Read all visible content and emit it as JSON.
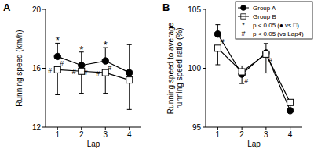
{
  "chart_data": [
    {
      "type": "line",
      "title": "A",
      "x_label": "Lap",
      "y_label": "Running speed (km/h)",
      "categories": [
        "1",
        "2",
        "3",
        "4"
      ],
      "ylim": [
        12,
        20
      ],
      "yticks": [
        12,
        16,
        20
      ],
      "series": [
        {
          "name": "Group A",
          "color": "#000000",
          "marker": "circle",
          "values": [
            16.8,
            16.2,
            16.5,
            15.7
          ],
          "error_high": [
            0.9,
            0.9,
            0.9,
            1.9
          ]
        },
        {
          "name": "Group B",
          "color": "#000000",
          "marker": "square",
          "values": [
            15.9,
            15.8,
            15.7,
            15.2
          ],
          "error_low": [
            1.7,
            1.5,
            1.4,
            2.0
          ]
        }
      ],
      "annotations": [
        {
          "text": "*",
          "category": 0
        },
        {
          "text": "*",
          "category": 1
        },
        {
          "text": "*",
          "category": 2
        },
        {
          "text": "#",
          "series": 0,
          "category": 0
        },
        {
          "text": "#",
          "series": 0,
          "category": 1
        },
        {
          "text": "#",
          "series": 0,
          "category": 2
        },
        {
          "text": "#",
          "series": 1,
          "category": 0
        },
        {
          "text": "#",
          "series": 1,
          "category": 1
        },
        {
          "text": "#",
          "series": 1,
          "category": 2
        }
      ]
    },
    {
      "type": "line",
      "title": "B",
      "x_label": "Lap",
      "y_label": "Running speed to average running speed ratio (%)",
      "categories": [
        "1",
        "2",
        "3",
        "4"
      ],
      "ylim": [
        95,
        105
      ],
      "yticks": [
        95,
        100,
        105
      ],
      "legend": "upper right",
      "legend_notes": [
        {
          "symbol": "*",
          "text": "p < 0.05 (● vs □)"
        },
        {
          "symbol": "#",
          "text": "p < 0.05 (vs Lap4)"
        }
      ],
      "series": [
        {
          "name": "Group A",
          "color": "#000000",
          "marker": "circle",
          "values": [
            102.9,
            99.5,
            101.3,
            96.4
          ],
          "error_high": [
            0.8,
            0.7,
            0.8,
            0.6
          ]
        },
        {
          "name": "Group B",
          "color": "#000000",
          "marker": "square",
          "values": [
            101.7,
            99.7,
            101.2,
            97.1
          ],
          "error_low": [
            1.4,
            1.0,
            1.6,
            0.8
          ]
        }
      ],
      "annotations": [
        {
          "text": "#",
          "series": 0,
          "category": 0
        },
        {
          "text": "#",
          "series": 0,
          "category": 1
        },
        {
          "text": "#",
          "series": 0,
          "category": 2
        }
      ]
    }
  ]
}
